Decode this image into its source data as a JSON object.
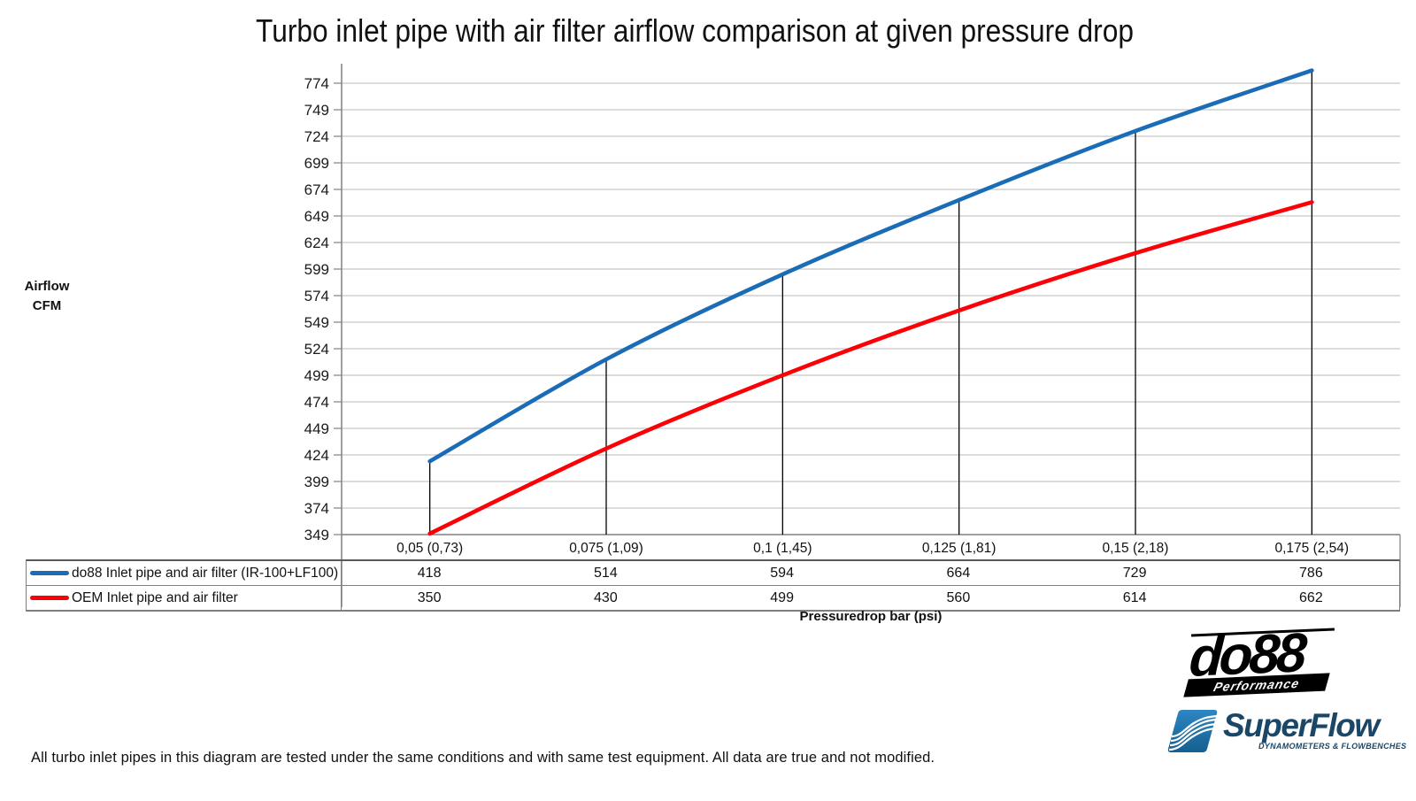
{
  "chart_data": {
    "type": "line",
    "title": "Turbo inlet pipe with air filter airflow comparison at given pressure drop",
    "categories": [
      "0,05 (0,73)",
      "0,075 (1,09)",
      "0,1 (1,45)",
      "0,125 (1,81)",
      "0,15 (2,18)",
      "0,175 (2,54)"
    ],
    "series": [
      {
        "name": "do88 Inlet pipe and air filter (IR-100+LF100)",
        "color": "#1B6CB6",
        "values": [
          418,
          514,
          594,
          664,
          729,
          786
        ]
      },
      {
        "name": "OEM Inlet pipe and air filter",
        "color": "#FB0006",
        "values": [
          350,
          430,
          499,
          560,
          614,
          662
        ]
      }
    ],
    "ylabel_lines": [
      "Airflow",
      "CFM"
    ],
    "xlabel": "Pressuredrop bar (psi)",
    "yaxis": {
      "min": 349,
      "max": 774,
      "tick_step": 25
    },
    "grid": true,
    "legend_position": "data-table-left",
    "category_drop_lines": true
  },
  "footer": {
    "note": "All turbo inlet pipes in this diagram are tested under the same conditions and with same test equipment. All data are true and not modified."
  },
  "logos": {
    "do88": {
      "name": "do88",
      "tagline": "Performance"
    },
    "superflow": {
      "name": "SuperFlow",
      "tagline": "DYNAMOMETERS & FLOWBENCHES"
    }
  },
  "colors": {
    "gridline": "#C6C6C6",
    "axis": "#808080",
    "drop_line": "#000000",
    "table_border": "#7F7F7F",
    "superflow_text": "#1A4668",
    "superflow_icon_top": "#2E86C3",
    "superflow_icon_bottom": "#15608F"
  }
}
